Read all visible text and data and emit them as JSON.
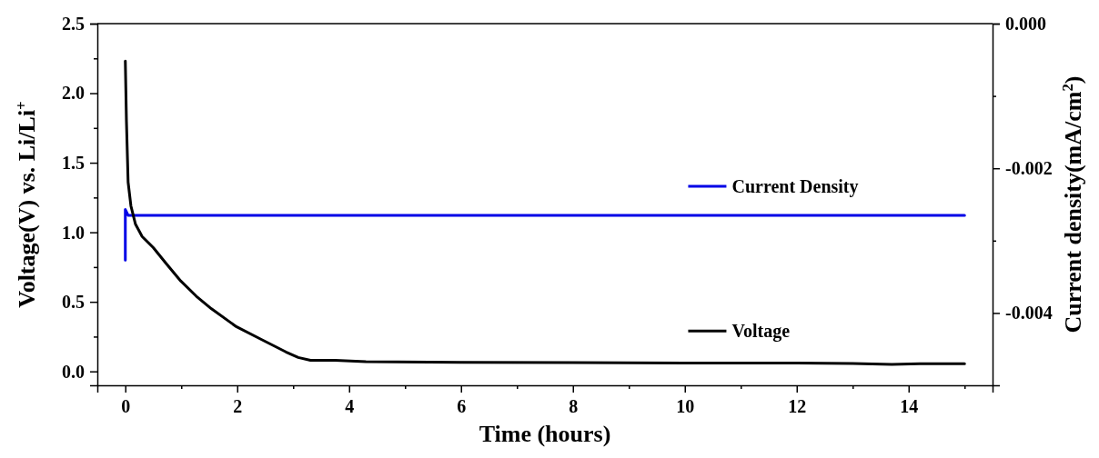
{
  "chart_data": {
    "type": "line",
    "xlabel": "Time (hours)",
    "ylabel": "Voltage(V) vs. Li/Li$^{+}$",
    "y2label": "Current density(mA/cm$^{2}$)",
    "xlim": [
      -0.5,
      15.5
    ],
    "ylim": [
      -0.1,
      2.5
    ],
    "y2lim": [
      -0.005,
      0.0
    ],
    "xticks": [
      0,
      {
        "value": 1,
        "label": null
      },
      2,
      {
        "value": 3,
        "label": null
      },
      4,
      {
        "value": 5,
        "label": null
      },
      6,
      {
        "value": 7,
        "label": null
      },
      8,
      {
        "value": 9,
        "label": null
      },
      10,
      {
        "value": 11,
        "label": null
      },
      12,
      {
        "value": 13,
        "label": null
      },
      14,
      {
        "value": 15,
        "label": null
      }
    ],
    "yticks": [
      {
        "value": 0,
        "label": "0.0"
      },
      {
        "value": 0.25,
        "label": null
      },
      {
        "value": 0.5,
        "label": "0.5"
      },
      {
        "value": 0.75,
        "label": null
      },
      {
        "value": 1,
        "label": "1.0"
      },
      {
        "value": 1.25,
        "label": null
      },
      {
        "value": 1.5,
        "label": "1.5"
      },
      {
        "value": 1.75,
        "label": null
      },
      {
        "value": 2,
        "label": "2.0"
      },
      {
        "value": 2.25,
        "label": null
      },
      {
        "value": 2.5,
        "label": "2.5"
      }
    ],
    "y2ticks": [
      {
        "value": 0,
        "label": "0.000"
      },
      {
        "value": -0.001,
        "label": null
      },
      {
        "value": -0.002,
        "label": "-0.002"
      },
      {
        "value": -0.003,
        "label": null
      },
      {
        "value": -0.004,
        "label": "-0.004"
      }
    ],
    "grid": false,
    "legend": "right",
    "line_style": "solid",
    "marker": "none",
    "series": [
      {
        "name": "Current Density",
        "color": "#0000e6",
        "axis": "y2",
        "x": [
          0,
          0,
          0.05,
          15
        ],
        "values": [
          -0.00327,
          -0.00257,
          -0.00265,
          -0.00265
        ]
      },
      {
        "name": "Voltage",
        "color": "#000000",
        "axis": "y",
        "x": [
          0,
          0.02,
          0.05,
          0.1,
          0.18,
          0.3,
          0.5,
          0.72,
          0.99,
          1.27,
          1.54,
          1.99,
          2.43,
          2.87,
          3.09,
          3.31,
          3.75,
          4.3,
          6,
          8,
          10,
          12,
          13,
          13.7,
          14.2,
          15
        ],
        "values": [
          2.23,
          1.8,
          1.36,
          1.19,
          1.06,
          0.97,
          0.89,
          0.78,
          0.65,
          0.54,
          0.45,
          0.32,
          0.23,
          0.14,
          0.1,
          0.08,
          0.08,
          0.07,
          0.065,
          0.063,
          0.06,
          0.06,
          0.057,
          0.05,
          0.055,
          0.055
        ]
      }
    ]
  }
}
